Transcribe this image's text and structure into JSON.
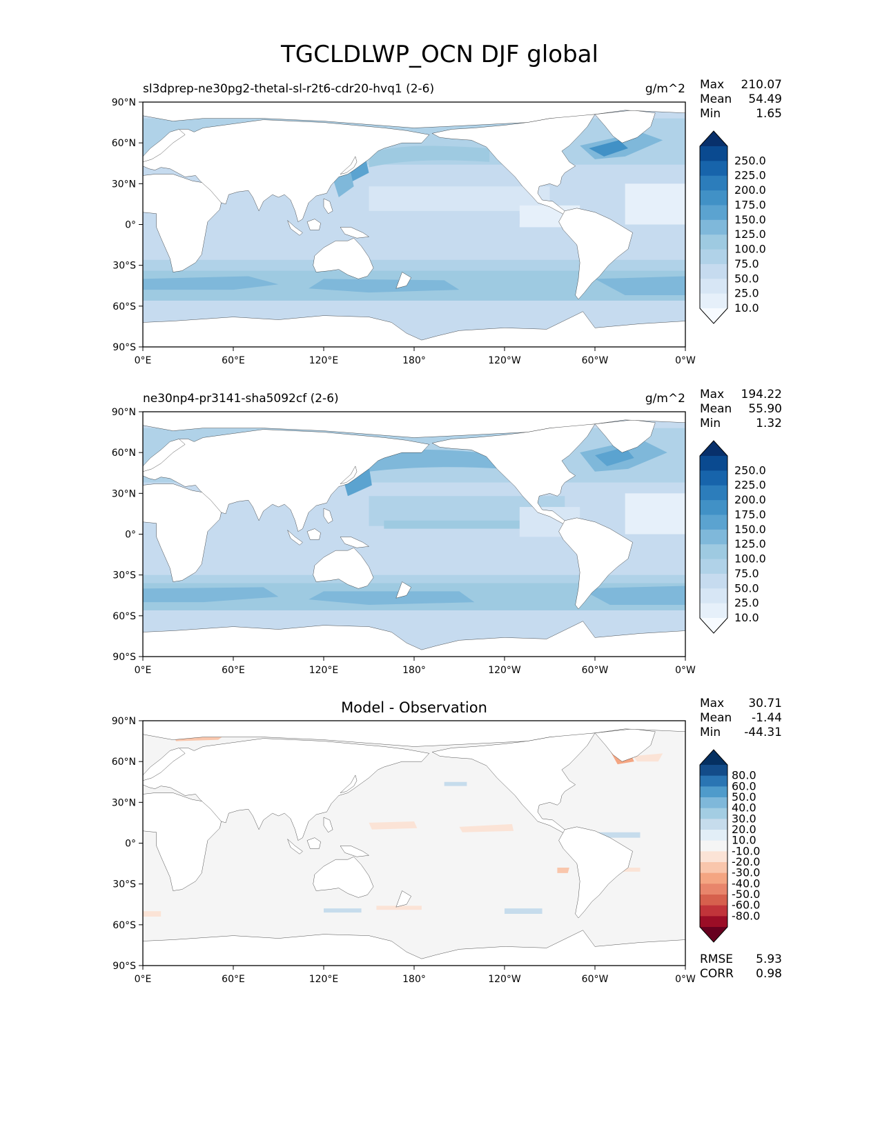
{
  "figure": {
    "title": "TGCLDLWP_OCN DJF global"
  },
  "colors": {
    "land": "#ffffff",
    "coastline": "#000000",
    "blues": [
      "#f7fbff",
      "#e6f0fa",
      "#d7e6f5",
      "#c6dbef",
      "#b0d2e8",
      "#9ecae1",
      "#7fb8da",
      "#5ba3d0",
      "#4191c6",
      "#2c7dbb",
      "#1764ab",
      "#0a4a90",
      "#08306b"
    ],
    "diff_cold": [
      "#67001f",
      "#9b0d26",
      "#c1343a",
      "#d6604d",
      "#e8856b",
      "#f4a582",
      "#f9c6ac",
      "#fbe3d6"
    ],
    "diff_neutral": "#f5f5f5",
    "diff_warm": [
      "#e2eef7",
      "#c6dcec",
      "#a3cde3",
      "#7fb8da",
      "#4f9bcb",
      "#2a75b3",
      "#134c89",
      "#053061"
    ]
  },
  "axes": {
    "lat_ticks": [
      "90°N",
      "60°N",
      "30°N",
      "0°",
      "30°S",
      "60°S",
      "90°S"
    ],
    "lon_ticks": [
      "0°E",
      "60°E",
      "120°E",
      "180°",
      "120°W",
      "60°W",
      "0°W"
    ]
  },
  "panels": [
    {
      "id": "test",
      "left_title": "sl3dprep-ne30pg2-thetal-sl-r2t6-cdr20-hvq1 (2-6)",
      "center_title": "",
      "units": "g/m^2",
      "stats": [
        {
          "label": "Max",
          "value": "210.07"
        },
        {
          "label": "Mean",
          "value": "54.49"
        },
        {
          "label": "Min",
          "value": "1.65"
        }
      ],
      "colorbar_labels": [
        "250.0",
        "225.0",
        "200.0",
        "175.0",
        "150.0",
        "125.0",
        "100.0",
        "75.0",
        "50.0",
        "25.0",
        "10.0"
      ],
      "colorbar_kind": "seq"
    },
    {
      "id": "reference",
      "left_title": "ne30np4-pr3141-sha5092cf (2-6)",
      "center_title": "",
      "units": "g/m^2",
      "stats": [
        {
          "label": "Max",
          "value": "194.22"
        },
        {
          "label": "Mean",
          "value": "55.90"
        },
        {
          "label": "Min",
          "value": "1.32"
        }
      ],
      "colorbar_labels": [
        "250.0",
        "225.0",
        "200.0",
        "175.0",
        "150.0",
        "125.0",
        "100.0",
        "75.0",
        "50.0",
        "25.0",
        "10.0"
      ],
      "colorbar_kind": "seq"
    },
    {
      "id": "difference",
      "left_title": "",
      "center_title": "Model - Observation",
      "units": "",
      "stats": [
        {
          "label": "Max",
          "value": "30.71"
        },
        {
          "label": "Mean",
          "value": "-1.44"
        },
        {
          "label": "Min",
          "value": "-44.31"
        }
      ],
      "colorbar_labels": [
        "80.0",
        "60.0",
        "50.0",
        "40.0",
        "30.0",
        "20.0",
        "10.0",
        "-10.0",
        "-20.0",
        "-30.0",
        "-40.0",
        "-50.0",
        "-60.0",
        "-80.0"
      ],
      "colorbar_kind": "div",
      "bottom_stats": [
        {
          "label": "RMSE",
          "value": "5.93"
        },
        {
          "label": "CORR",
          "value": "0.98"
        }
      ]
    }
  ]
}
